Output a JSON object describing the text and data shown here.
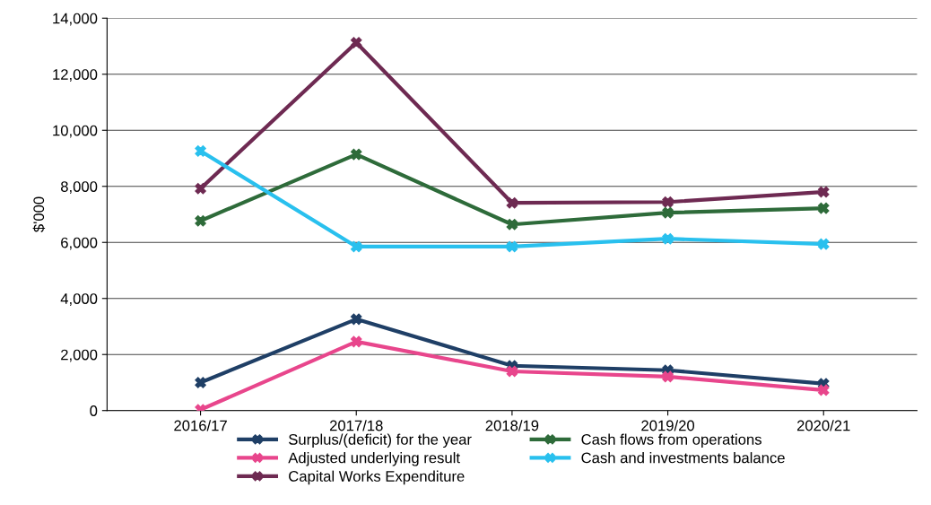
{
  "chart_data": {
    "type": "line",
    "ylabel": "$'000",
    "categories": [
      "2016/17",
      "2017/18",
      "2018/19",
      "2019/20",
      "2020/21"
    ],
    "series": [
      {
        "name": "Surplus/(deficit) for the year",
        "color": "#1f3f66",
        "values": [
          1000,
          3260,
          1600,
          1440,
          960
        ]
      },
      {
        "name": "Adjusted underlying result",
        "color": "#e8468c",
        "values": [
          30,
          2460,
          1400,
          1210,
          730
        ]
      },
      {
        "name": "Capital Works Expenditure",
        "color": "#6e2a52",
        "values": [
          7920,
          13130,
          7410,
          7440,
          7800
        ]
      },
      {
        "name": "Cash flows from operations",
        "color": "#2e6b3a",
        "values": [
          6770,
          9140,
          6640,
          7060,
          7220
        ]
      },
      {
        "name": "Cash and investments balance",
        "color": "#29c0ee",
        "values": [
          9260,
          5850,
          5850,
          6130,
          5940
        ]
      }
    ],
    "ylim": [
      0,
      14000
    ],
    "yticks": [
      {
        "value": 0,
        "label": "0"
      },
      {
        "value": 2000,
        "label": "2,000"
      },
      {
        "value": 4000,
        "label": "4,000"
      },
      {
        "value": 6000,
        "label": "6,000"
      },
      {
        "value": 8000,
        "label": "8,000"
      },
      {
        "value": 10000,
        "label": "10,000"
      },
      {
        "value": 12000,
        "label": "12,000"
      },
      {
        "value": 14000,
        "label": "14,000"
      }
    ],
    "grid": "y",
    "legend": "bottom",
    "marker": "cross",
    "line_style": "solid"
  }
}
